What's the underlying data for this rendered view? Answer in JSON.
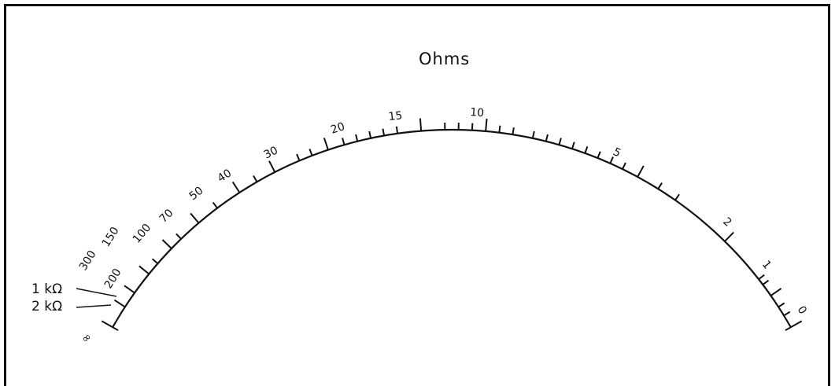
{
  "title": "Ohms",
  "scale": {
    "labels": [
      {
        "text": "∞",
        "value": "infinity"
      },
      {
        "text": "200",
        "value": 200
      },
      {
        "text": "300",
        "value": 300
      },
      {
        "text": "150",
        "value": 150
      },
      {
        "text": "100",
        "value": 100
      },
      {
        "text": "70",
        "value": 70
      },
      {
        "text": "50",
        "value": 50
      },
      {
        "text": "40",
        "value": 40
      },
      {
        "text": "30",
        "value": 30
      },
      {
        "text": "20",
        "value": 20
      },
      {
        "text": "15",
        "value": 15
      },
      {
        "text": "10",
        "value": 10
      },
      {
        "text": "5",
        "value": 5
      },
      {
        "text": "2",
        "value": 2
      },
      {
        "text": "1",
        "value": 1
      },
      {
        "text": "0",
        "value": 0
      }
    ],
    "callouts": [
      {
        "text": "1 kΩ",
        "value": 1000
      },
      {
        "text": "2 kΩ",
        "value": 2000
      }
    ]
  },
  "colors": {
    "ink": "#111111",
    "background": "#ffffff"
  }
}
